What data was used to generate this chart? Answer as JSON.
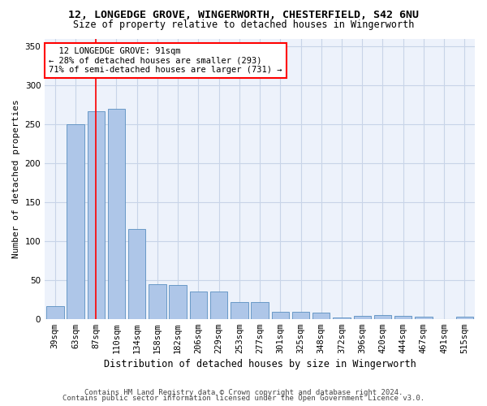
{
  "title1": "12, LONGEDGE GROVE, WINGERWORTH, CHESTERFIELD, S42 6NU",
  "title2": "Size of property relative to detached houses in Wingerworth",
  "xlabel": "Distribution of detached houses by size in Wingerworth",
  "ylabel": "Number of detached properties",
  "categories": [
    "39sqm",
    "63sqm",
    "87sqm",
    "110sqm",
    "134sqm",
    "158sqm",
    "182sqm",
    "206sqm",
    "229sqm",
    "253sqm",
    "277sqm",
    "301sqm",
    "325sqm",
    "348sqm",
    "372sqm",
    "396sqm",
    "420sqm",
    "444sqm",
    "467sqm",
    "491sqm",
    "515sqm"
  ],
  "values": [
    16,
    250,
    267,
    270,
    115,
    45,
    44,
    35,
    35,
    22,
    22,
    9,
    9,
    8,
    2,
    4,
    5,
    4,
    3,
    0,
    3
  ],
  "bar_color": "#aec6e8",
  "bar_edge_color": "#5a8fc0",
  "grid_color": "#c8d4e8",
  "background_color": "#edf2fb",
  "red_line_x": 2,
  "annotation_text": "  12 LONGEDGE GROVE: 91sqm  \n← 28% of detached houses are smaller (293)\n71% of semi-detached houses are larger (731) →",
  "annotation_box_color": "white",
  "annotation_box_edge": "red",
  "footer1": "Contains HM Land Registry data © Crown copyright and database right 2024.",
  "footer2": "Contains public sector information licensed under the Open Government Licence v3.0.",
  "ylim": [
    0,
    360
  ],
  "yticks": [
    0,
    50,
    100,
    150,
    200,
    250,
    300,
    350
  ],
  "title1_fontsize": 9.5,
  "title2_fontsize": 8.5,
  "xlabel_fontsize": 8.5,
  "ylabel_fontsize": 8,
  "tick_fontsize": 7.5,
  "annotation_fontsize": 7.5,
  "footer_fontsize": 6.5
}
